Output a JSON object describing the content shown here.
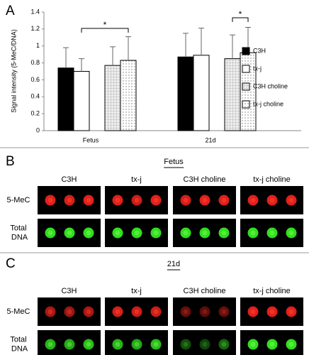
{
  "chart_data": {
    "type": "bar",
    "panel": "A",
    "y_label": "Signal intensity (5-MeC/DNA)",
    "categories": [
      "Fetus",
      "21d"
    ],
    "series": [
      {
        "name": "C3H",
        "color": "#000000",
        "values": [
          0.74,
          0.87
        ],
        "errors": [
          0.24,
          0.28
        ]
      },
      {
        "name": "tx-j",
        "color": "#ffffff",
        "values": [
          0.7,
          0.89
        ],
        "errors": [
          0.15,
          0.32
        ]
      },
      {
        "name": "C3H choline",
        "color": "#e6e6e6",
        "pattern": "grid",
        "values": [
          0.77,
          0.85
        ],
        "errors": [
          0.22,
          0.28
        ]
      },
      {
        "name": "tx-j choline",
        "color": "#ffffff",
        "pattern": "dots",
        "values": [
          0.83,
          0.92
        ],
        "errors": [
          0.28,
          0.3
        ]
      }
    ],
    "annotations": [
      "*",
      "*"
    ],
    "ylim": [
      0,
      1.4
    ],
    "yticks": [
      0,
      0.2,
      0.4,
      0.6,
      0.8,
      1,
      1.2,
      1.4
    ],
    "grid": false,
    "legend": "right"
  },
  "blots": [
    {
      "panel": "B",
      "title": "Fetus",
      "columns": [
        "C3H",
        "tx-j",
        "C3H choline",
        "tx-j choline"
      ],
      "rows": [
        "5-MeC",
        "Total DNA"
      ]
    },
    {
      "panel": "C",
      "title": "21d",
      "columns": [
        "C3H",
        "tx-j",
        "C3H choline",
        "tx-j choline"
      ],
      "rows": [
        "5-MeC",
        "Total DNA"
      ]
    }
  ]
}
